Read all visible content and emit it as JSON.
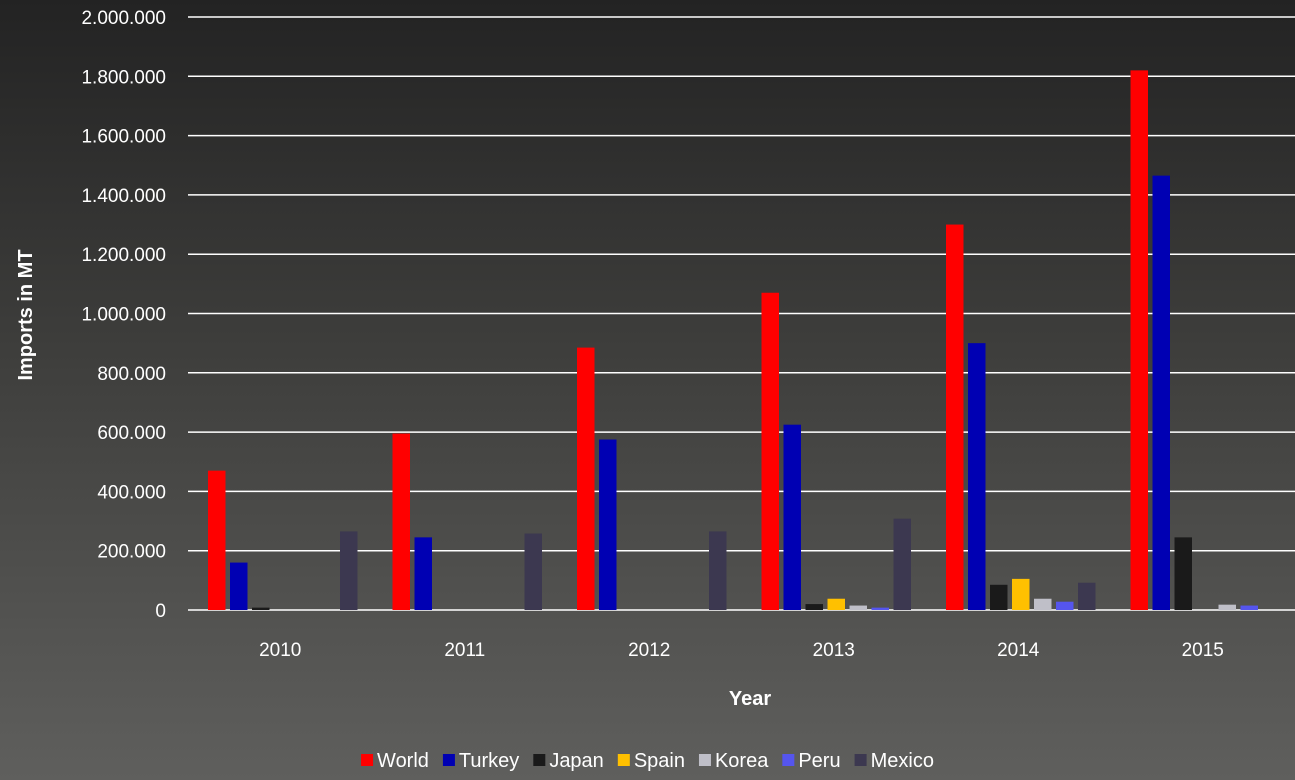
{
  "chart_data": {
    "type": "bar",
    "title": "",
    "xlabel": "Year",
    "ylabel": "Imports in MT",
    "ylim": [
      0,
      2000000
    ],
    "yticks": [
      0,
      200000,
      400000,
      600000,
      800000,
      1000000,
      1200000,
      1400000,
      1600000,
      1800000,
      2000000
    ],
    "ytick_labels": [
      "0",
      "200.000",
      "400.000",
      "600.000",
      "800.000",
      "1.000.000",
      "1.200.000",
      "1.400.000",
      "1.600.000",
      "1.800.000",
      "2.000.000"
    ],
    "grid": true,
    "legend": "bottom",
    "categories": [
      "2010",
      "2011",
      "2012",
      "2013",
      "2014",
      "2015"
    ],
    "series": [
      {
        "name": "World",
        "color": "#ff0000",
        "values": [
          470000,
          595000,
          885000,
          1070000,
          1300000,
          1820000
        ]
      },
      {
        "name": "Turkey",
        "color": "#0000b3",
        "values": [
          160000,
          245000,
          575000,
          625000,
          900000,
          1465000
        ]
      },
      {
        "name": "Japan",
        "color": "#1a1a1a",
        "values": [
          8000,
          0,
          0,
          20000,
          85000,
          245000
        ]
      },
      {
        "name": "Spain",
        "color": "#ffc000",
        "values": [
          0,
          0,
          0,
          38000,
          105000,
          0
        ]
      },
      {
        "name": "Korea",
        "color": "#bfbfc8",
        "values": [
          0,
          0,
          0,
          15000,
          38000,
          18000
        ]
      },
      {
        "name": "Peru",
        "color": "#5555ee",
        "values": [
          0,
          0,
          0,
          8000,
          28000,
          15000
        ]
      },
      {
        "name": "Mexico",
        "color": "#3c3850",
        "values": [
          265000,
          258000,
          265000,
          308000,
          92000,
          0
        ]
      }
    ]
  }
}
